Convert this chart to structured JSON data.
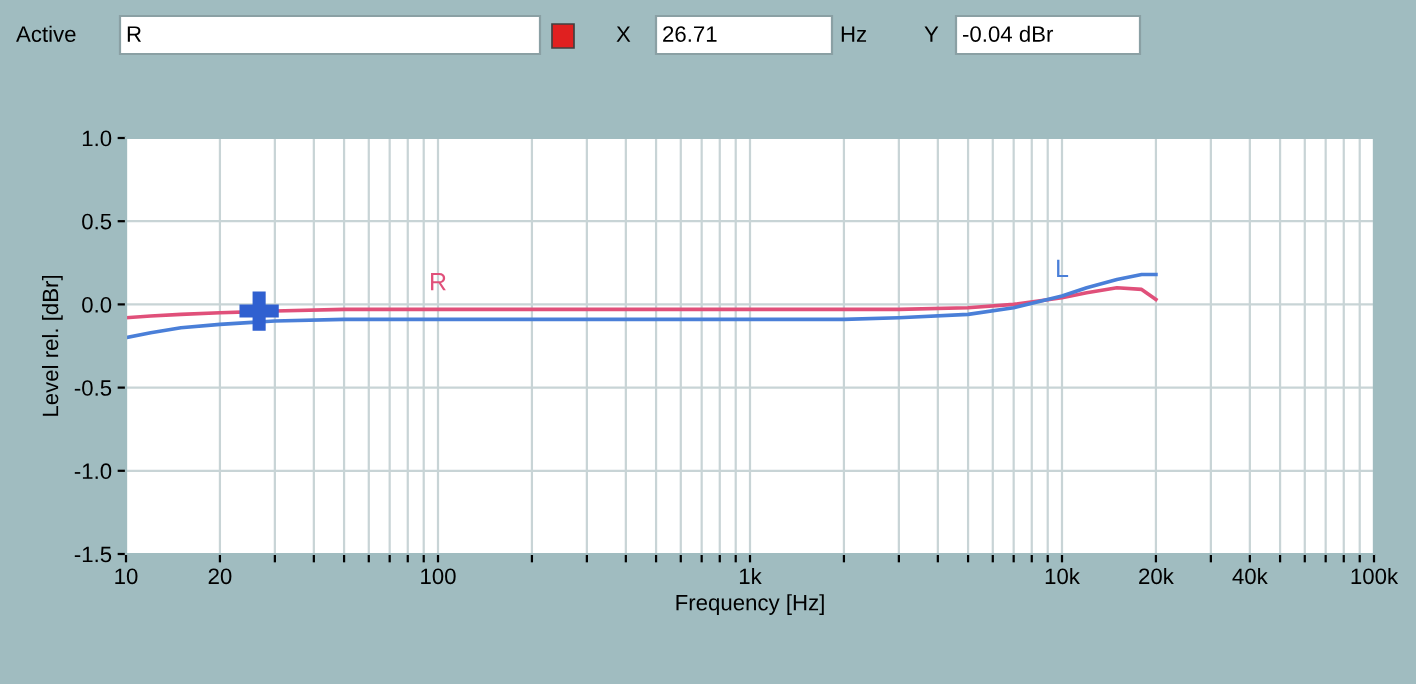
{
  "chart_data": {
    "type": "line",
    "xlabel": "Frequency [Hz]",
    "ylabel": "Level rel. [dBr]",
    "log": "x",
    "grid": true,
    "line_style": "solid",
    "marker": "none",
    "xlim": [
      10,
      100000
    ],
    "ylim": [
      -1.5,
      1.0
    ],
    "xticks": [
      {
        "value": 10,
        "label": "10"
      },
      {
        "value": 20,
        "label": "20"
      },
      {
        "value": 30,
        "label": null
      },
      {
        "value": 40,
        "label": null
      },
      {
        "value": 50,
        "label": null
      },
      {
        "value": 60,
        "label": null
      },
      {
        "value": 70,
        "label": null
      },
      {
        "value": 80,
        "label": null
      },
      {
        "value": 90,
        "label": null
      },
      {
        "value": 100,
        "label": "100"
      },
      {
        "value": 200,
        "label": null
      },
      {
        "value": 300,
        "label": null
      },
      {
        "value": 400,
        "label": null
      },
      {
        "value": 500,
        "label": null
      },
      {
        "value": 600,
        "label": null
      },
      {
        "value": 700,
        "label": null
      },
      {
        "value": 800,
        "label": null
      },
      {
        "value": 900,
        "label": null
      },
      {
        "value": 1000,
        "label": "1k"
      },
      {
        "value": 2000,
        "label": null
      },
      {
        "value": 3000,
        "label": null
      },
      {
        "value": 4000,
        "label": null
      },
      {
        "value": 5000,
        "label": null
      },
      {
        "value": 6000,
        "label": null
      },
      {
        "value": 7000,
        "label": null
      },
      {
        "value": 8000,
        "label": null
      },
      {
        "value": 9000,
        "label": null
      },
      {
        "value": 10000,
        "label": "10k"
      },
      {
        "value": 20000,
        "label": "20k"
      },
      {
        "value": 30000,
        "label": null
      },
      {
        "value": 40000,
        "label": "40k"
      },
      {
        "value": 50000,
        "label": null
      },
      {
        "value": 60000,
        "label": null
      },
      {
        "value": 70000,
        "label": null
      },
      {
        "value": 80000,
        "label": null
      },
      {
        "value": 90000,
        "label": null
      },
      {
        "value": 100000,
        "label": "100k"
      }
    ],
    "yticks": [
      {
        "value": 1.0,
        "label": "1.0"
      },
      {
        "value": 0.5,
        "label": "0.5"
      },
      {
        "value": 0.0,
        "label": "0.0"
      },
      {
        "value": -0.5,
        "label": "-0.5"
      },
      {
        "value": -1.0,
        "label": "-1.0"
      },
      {
        "value": -1.5,
        "label": "-1.5"
      }
    ],
    "series": [
      {
        "name": "R",
        "color": "#e0507a",
        "x": [
          10,
          12,
          15,
          20,
          30,
          50,
          100,
          300,
          1000,
          3000,
          5000,
          7000,
          10000,
          12000,
          15000,
          18000,
          20000
        ],
        "values": [
          -0.08,
          -0.07,
          -0.06,
          -0.05,
          -0.04,
          -0.03,
          -0.03,
          -0.03,
          -0.03,
          -0.03,
          -0.02,
          0.0,
          0.04,
          0.07,
          0.1,
          0.09,
          0.03
        ]
      },
      {
        "name": "L",
        "color": "#4a7fd8",
        "x": [
          10,
          12,
          15,
          20,
          30,
          50,
          100,
          300,
          1000,
          2000,
          3000,
          5000,
          7000,
          10000,
          12000,
          15000,
          18000,
          20000
        ],
        "values": [
          -0.2,
          -0.17,
          -0.14,
          -0.12,
          -0.1,
          -0.09,
          -0.09,
          -0.09,
          -0.09,
          -0.09,
          -0.08,
          -0.06,
          -0.02,
          0.05,
          0.1,
          0.15,
          0.18,
          0.18
        ]
      },
      {
        "type": "scatter",
        "marker": "cross",
        "color": "#3060d0",
        "x": [
          26.71
        ],
        "values": [
          -0.04
        ]
      }
    ],
    "annotations": [
      "Active",
      "R",
      "X",
      "26.71",
      "Hz",
      "Y",
      "-0.04 dBr"
    ]
  }
}
